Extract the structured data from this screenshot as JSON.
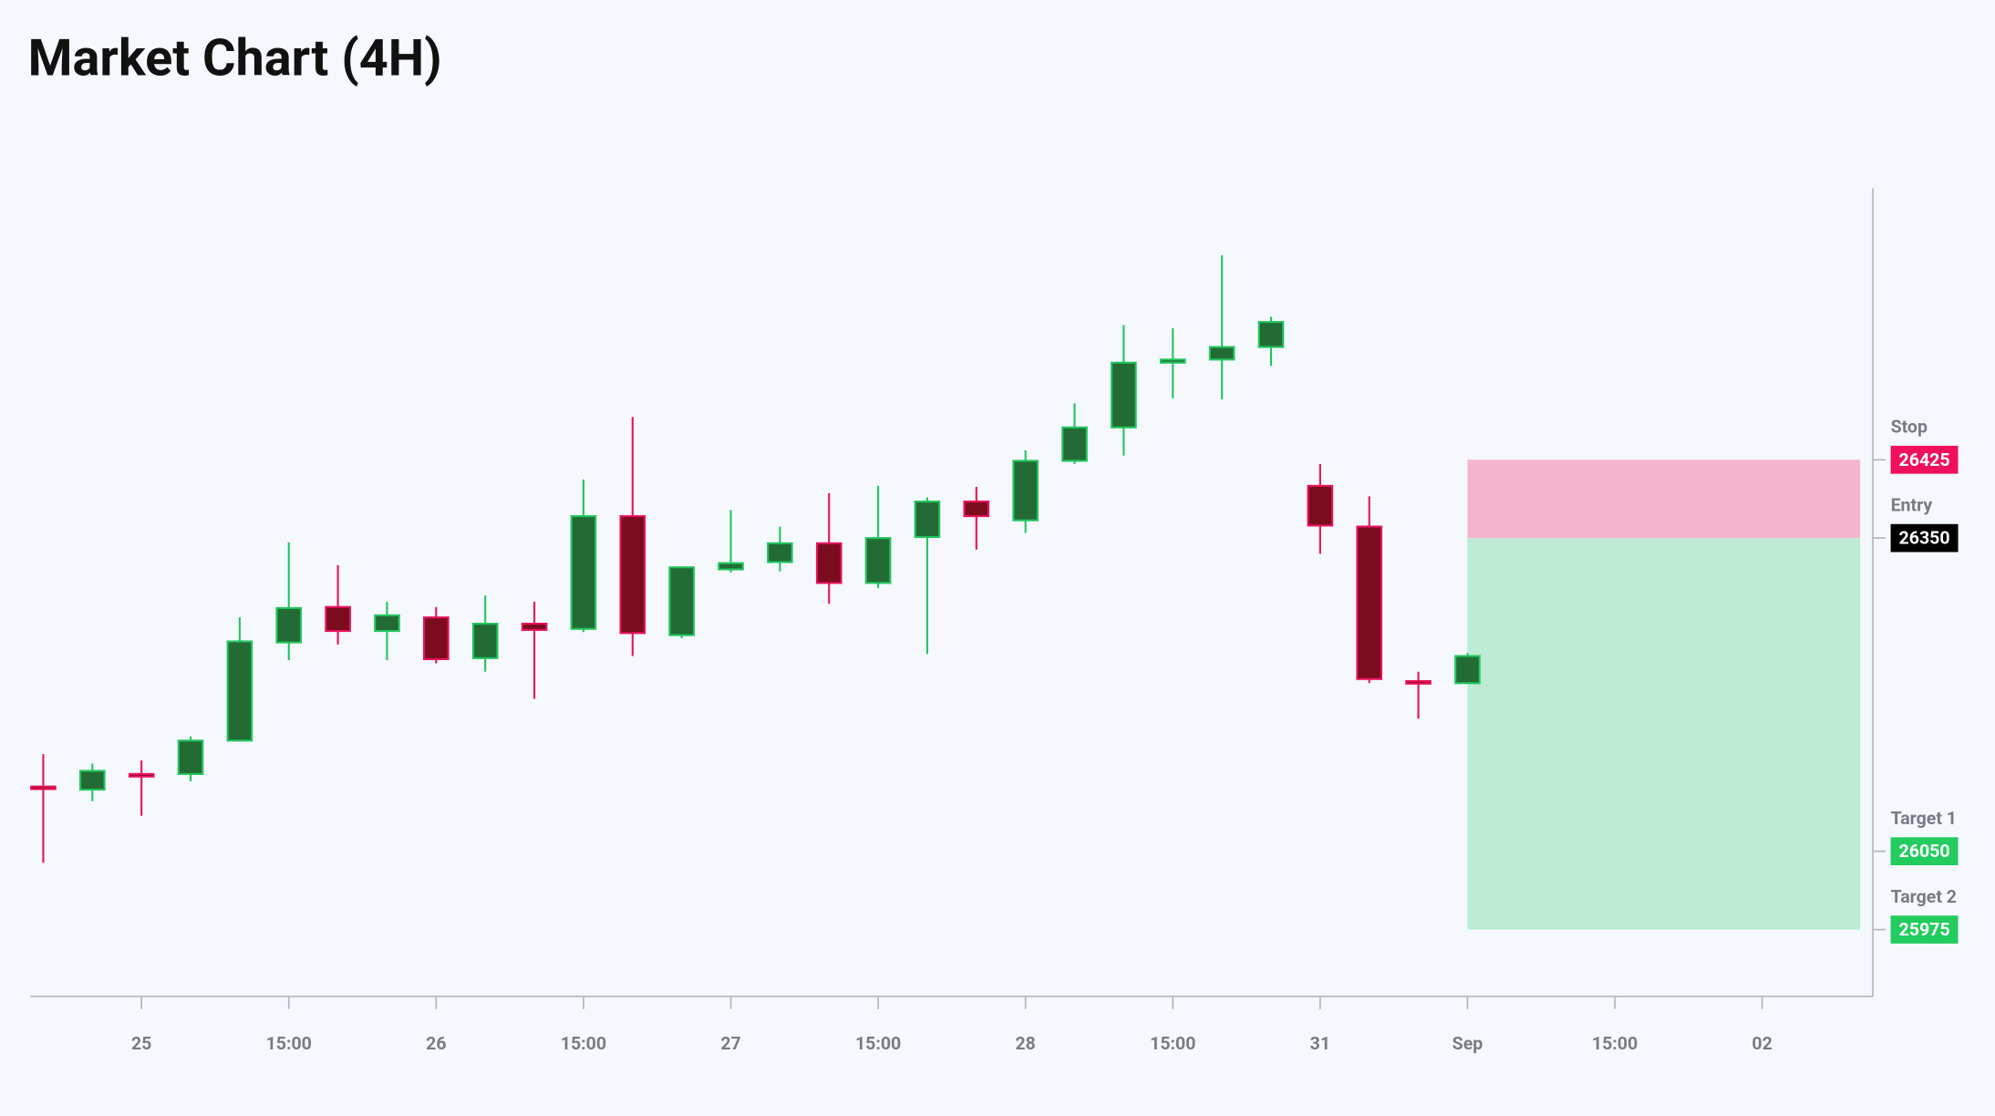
{
  "chart_data": {
    "type": "candlestick",
    "title": "Market Chart (4H)",
    "categories": [
      null,
      null,
      "25",
      null,
      null,
      "15:00",
      null,
      null,
      "26",
      null,
      null,
      "15:00",
      null,
      null,
      "27",
      null,
      null,
      "15:00",
      null,
      null,
      "28",
      null,
      null,
      "15:00",
      null,
      null,
      "31",
      null,
      null,
      "Sep",
      null,
      null,
      "15:00",
      null,
      null,
      "02",
      null,
      null
    ],
    "open": [
      26112,
      26109,
      26124,
      26124,
      26156,
      26250,
      26284,
      26261,
      26274,
      26235,
      26268,
      26263,
      26371,
      26257,
      26320,
      26327,
      26345,
      26307,
      26351,
      26385,
      26367,
      26424,
      26456,
      26518,
      26521,
      26533,
      26400,
      26361,
      26213,
      26211,
      null,
      null,
      null,
      null,
      null,
      null,
      null,
      null
    ],
    "high": [
      26143,
      26134,
      26137,
      26160,
      26274,
      26346,
      26324,
      26289,
      26284,
      26295,
      26289,
      26406,
      26466,
      26322,
      26377,
      26361,
      26393,
      26400,
      26389,
      26399,
      26434,
      26479,
      26554,
      26551,
      26621,
      26562,
      26421,
      26390,
      26222,
      26240,
      null,
      null,
      null,
      null,
      null,
      null,
      null,
      null
    ],
    "low": [
      26039,
      26098,
      26084,
      26117,
      26155,
      26233,
      26248,
      26233,
      26230,
      26222,
      26196,
      26260,
      26237,
      26254,
      26317,
      26318,
      26287,
      26302,
      26239,
      26339,
      26355,
      26421,
      26429,
      26484,
      26483,
      26515,
      26335,
      26211,
      26177,
      26211,
      null,
      null,
      null,
      null,
      null,
      null,
      null,
      null
    ],
    "close": [
      26110,
      26127,
      26122,
      26156,
      26251,
      26283,
      26261,
      26276,
      26234,
      26268,
      26262,
      26371,
      26259,
      26322,
      26326,
      26345,
      26307,
      26350,
      26385,
      26371,
      26424,
      26456,
      26518,
      26521,
      26533,
      26557,
      26362,
      26215,
      26211,
      26237,
      null,
      null,
      null,
      null,
      null,
      null,
      null,
      null
    ],
    "up_color": "#22c55e",
    "up_fill": "#236b35",
    "down_color": "#e8125c",
    "down_fill": "#7a0c1e",
    "ylim": [
      25911,
      26685
    ],
    "levels": [
      {
        "label": "Stop",
        "value": 26425,
        "color": "#f0115a"
      },
      {
        "label": "Entry",
        "value": 26350,
        "color": "#000000"
      },
      {
        "label": "Target 1",
        "value": 26050,
        "color": "#22cc5e"
      },
      {
        "label": "Target 2",
        "value": 25975,
        "color": "#22cc5e"
      }
    ]
  }
}
